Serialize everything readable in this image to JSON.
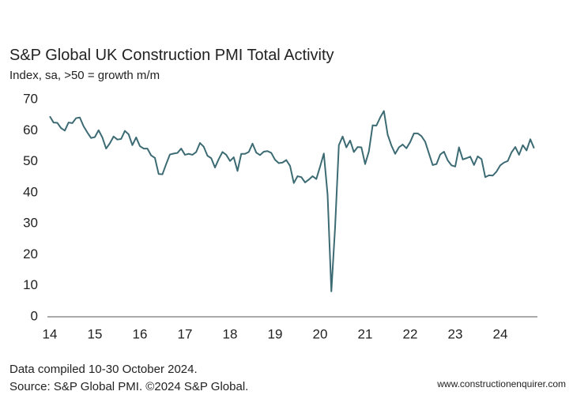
{
  "chart_data": {
    "type": "line",
    "title": "S&P Global UK Construction PMI Total Activity",
    "subtitle": "Index, sa, >50 = growth m/m",
    "footnotes": [
      "Data compiled 10-30 October 2024.",
      "Source: S&P Global PMI. ©2024 S&P Global."
    ],
    "watermark": "www.constructionenquirer.com",
    "categories": [
      "14",
      null,
      null,
      null,
      null,
      null,
      null,
      null,
      null,
      null,
      null,
      null,
      "15",
      null,
      null,
      null,
      null,
      null,
      null,
      null,
      null,
      null,
      null,
      null,
      "16",
      null,
      null,
      null,
      null,
      null,
      null,
      null,
      null,
      null,
      null,
      null,
      "17",
      null,
      null,
      null,
      null,
      null,
      null,
      null,
      null,
      null,
      null,
      null,
      "18",
      null,
      null,
      null,
      null,
      null,
      null,
      null,
      null,
      null,
      null,
      null,
      "19",
      null,
      null,
      null,
      null,
      null,
      null,
      null,
      null,
      null,
      null,
      null,
      "20",
      null,
      null,
      null,
      null,
      null,
      null,
      null,
      null,
      null,
      null,
      null,
      "21",
      null,
      null,
      null,
      null,
      null,
      null,
      null,
      null,
      null,
      null,
      null,
      "22",
      null,
      null,
      null,
      null,
      null,
      null,
      null,
      null,
      null,
      null,
      null,
      "23",
      null,
      null,
      null,
      null,
      null,
      null,
      null,
      null,
      null,
      null,
      null,
      "24",
      null,
      null,
      null,
      null,
      null,
      null,
      null,
      null,
      null
    ],
    "series": [
      {
        "color": "#3d6b74",
        "values": [
          64.6,
          62.6,
          62.5,
          60.8,
          60.0,
          62.6,
          62.4,
          64.0,
          64.2,
          61.4,
          59.4,
          57.6,
          57.9,
          60.1,
          57.8,
          54.2,
          55.9,
          58.1,
          57.1,
          57.3,
          59.9,
          58.8,
          55.3,
          57.8,
          55.0,
          54.2,
          54.2,
          52.0,
          51.2,
          46.0,
          45.9,
          49.2,
          52.3,
          52.6,
          52.8,
          54.2,
          52.2,
          52.5,
          52.2,
          53.1,
          56.0,
          54.8,
          51.9,
          51.1,
          48.1,
          50.8,
          53.1,
          52.2,
          50.2,
          51.4,
          47.0,
          52.5,
          52.5,
          53.1,
          55.8,
          52.9,
          52.1,
          53.2,
          53.4,
          52.8,
          50.6,
          49.5,
          49.7,
          50.5,
          48.6,
          43.1,
          45.3,
          45.0,
          43.3,
          44.2,
          45.3,
          44.4,
          48.4,
          52.6,
          39.3,
          8.2,
          28.9,
          55.3,
          58.1,
          54.6,
          56.8,
          53.1,
          54.7,
          54.6,
          49.2,
          53.3,
          61.7,
          61.6,
          64.2,
          66.3,
          58.7,
          55.2,
          52.5,
          54.6,
          55.5,
          54.3,
          56.3,
          59.1,
          59.1,
          58.2,
          56.4,
          52.6,
          48.9,
          49.2,
          52.3,
          53.2,
          50.4,
          48.8,
          48.4,
          54.6,
          50.7,
          51.1,
          51.6,
          48.9,
          51.7,
          50.8,
          45.0,
          45.6,
          45.5,
          46.8,
          48.8,
          49.7,
          50.2,
          53.0,
          54.7,
          52.2,
          55.3,
          53.6,
          57.2,
          54.3
        ]
      }
    ],
    "ylim": [
      0,
      70
    ],
    "yticks": [
      0,
      10,
      20,
      30,
      40,
      50,
      60,
      70
    ],
    "grid": false
  }
}
